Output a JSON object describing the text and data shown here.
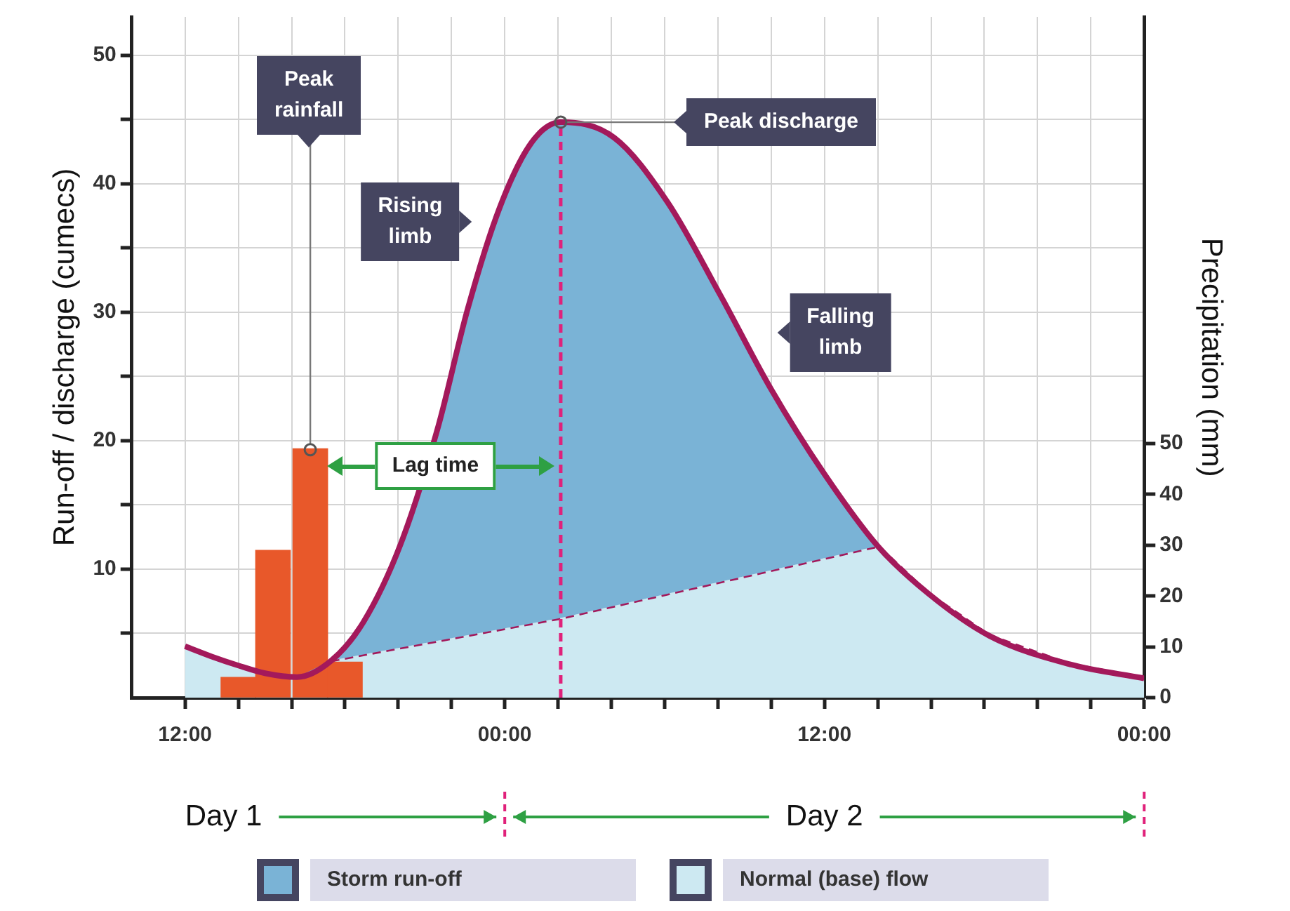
{
  "chart_data": {
    "type": "area",
    "ylabel": "Run-off / discharge (cumecs)",
    "y2label": "Precipitation (mm)",
    "xlim": [
      "--01-01T10:00",
      "--01-03T00:00"
    ],
    "xticks": [
      {
        "value": "--01-01T12:00",
        "label": "12:00"
      },
      {
        "value": "--01-01T14:00",
        "label": null
      },
      {
        "value": "--01-01T16:00",
        "label": null
      },
      {
        "value": "--01-01T18:00",
        "label": null
      },
      {
        "value": "--01-01T20:00",
        "label": null
      },
      {
        "value": "--01-01T22:00",
        "label": null
      },
      {
        "value": "--01-02T00:00",
        "label": "00:00"
      },
      {
        "value": "--01-02T02:00",
        "label": null
      },
      {
        "value": "--01-02T04:00",
        "label": null
      },
      {
        "value": "--01-02T06:00",
        "label": null
      },
      {
        "value": "--01-02T08:00",
        "label": null
      },
      {
        "value": "--01-02T10:00",
        "label": null
      },
      {
        "value": "--01-02T12:00",
        "label": "12:00"
      },
      {
        "value": "--01-02T14:00",
        "label": null
      },
      {
        "value": "--01-02T16:00",
        "label": null
      },
      {
        "value": "--01-02T18:00",
        "label": null
      },
      {
        "value": "--01-02T20:00",
        "label": null
      },
      {
        "value": "--01-02T22:00",
        "label": null
      },
      {
        "value": "--01-03T00:00",
        "label": "00:00"
      }
    ],
    "ylim": [
      0,
      53
    ],
    "yticks": [
      {
        "value": 5,
        "label": null
      },
      10,
      {
        "value": 15,
        "label": null
      },
      20,
      {
        "value": 25,
        "label": null
      },
      30,
      {
        "value": 35,
        "label": null
      },
      40,
      {
        "value": 45,
        "label": null
      },
      50
    ],
    "y2lim": [
      0,
      134
    ],
    "y2ticks": [
      0,
      10,
      20,
      30,
      40,
      50
    ],
    "grid": true,
    "legend": "bottom",
    "series": [
      {
        "name": "Storm run-off",
        "color": "#7ab3d6",
        "x": [
          "--01-01T12:00",
          "--01-01T13:00",
          "--01-01T14:00",
          "--01-01T15:00",
          "--01-01T16:12",
          "--01-01T17:30",
          "--01-01T18:42",
          "--01-01T20:06",
          "--01-01T21:30",
          "--01-01T22:36",
          "--01-01T23:48",
          "--01-02T01:00",
          "--01-02T02:06",
          "--01-02T04:06",
          "--01-02T06:06",
          "--01-02T08:06",
          "--01-02T10:00",
          "--01-02T12:00",
          "--01-02T14:00",
          "--01-02T15:54",
          "--01-02T18:12",
          "--01-02T21:12",
          "--01-03T00:00"
        ],
        "values": [
          4,
          3.2,
          2.5,
          1.9,
          1.6,
          2.9,
          5.9,
          12,
          21.1,
          30.2,
          38.1,
          43.2,
          44.8,
          43.6,
          38.6,
          31.3,
          24,
          17.4,
          11.8,
          8.1,
          4.8,
          2.6,
          1.5
        ]
      },
      {
        "name": "Normal (base) flow",
        "color": "#cde9f2",
        "line_style": "dashed",
        "x": [
          "--01-01T12:00",
          "--01-01T13:00",
          "--01-01T14:00",
          "--01-01T15:00",
          "--01-01T16:12",
          "--01-01T17:30",
          "--01-02T02:06",
          "--01-02T14:00",
          "--01-02T15:54",
          "--01-02T18:12",
          "--01-02T21:12",
          "--01-03T00:00"
        ],
        "values": [
          4,
          3.2,
          2.5,
          1.9,
          1.6,
          2.9,
          6.2,
          11.8,
          8.1,
          4.8,
          2.6,
          1.5
        ]
      },
      {
        "type": "bar",
        "axis": "y2",
        "color": "#e8582a",
        "x": [
          "--01-01T14:00",
          "--01-01T15:18",
          "--01-01T16:42",
          "--01-01T18:00"
        ],
        "values": [
          4,
          29,
          49,
          7
        ]
      }
    ],
    "ref_lines": [
      {
        "axis": "x",
        "value": "--01-02T02:06",
        "color": "#e0217a",
        "line_style": "dashed"
      }
    ],
    "annotations": [
      {
        "text": "Peak rainfall",
        "x": "--01-01T16:42",
        "y": 19.3
      },
      {
        "text": "Peak discharge",
        "x": "--01-02T02:06",
        "y": 44.8
      },
      "Rising limb",
      "Falling limb",
      "Lag time",
      "Day 1",
      "Day 2"
    ]
  }
}
